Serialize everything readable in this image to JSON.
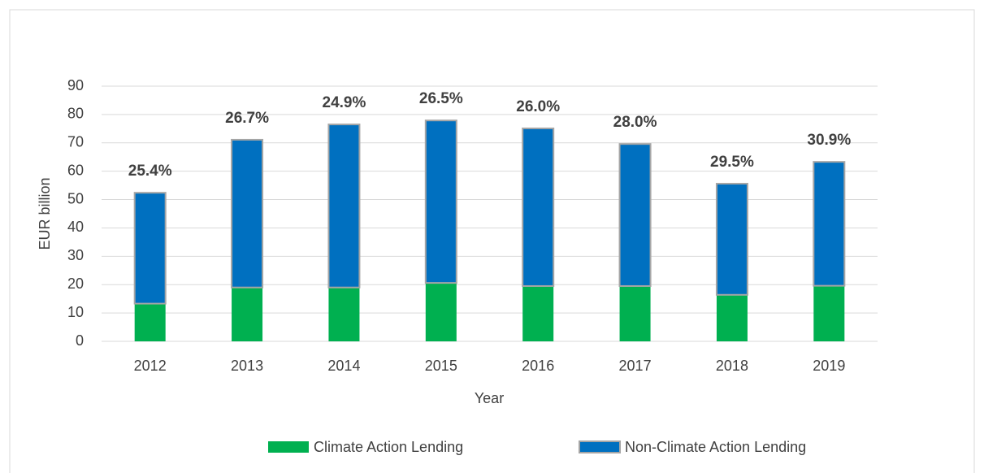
{
  "chart_data": {
    "type": "stacked_bar",
    "x_label": "Year",
    "y_label": "EUR billion",
    "categories": [
      "2012",
      "2013",
      "2014",
      "2015",
      "2016",
      "2017",
      "2018",
      "2019"
    ],
    "series": [
      {
        "name": "Climate Action Lending",
        "color": "#00b050",
        "values": [
          13.3,
          19.0,
          19.0,
          20.6,
          19.5,
          19.5,
          16.4,
          19.6
        ]
      },
      {
        "name": "Non-Climate Action Lending",
        "color": "#0070c0",
        "values": [
          39.1,
          52.1,
          57.5,
          57.3,
          55.6,
          50.1,
          39.2,
          43.7
        ]
      }
    ],
    "share_labels": [
      "25.4%",
      "26.7%",
      "24.9%",
      "26.5%",
      "26.0%",
      "28.0%",
      "29.5%",
      "30.9%"
    ],
    "ylim": [
      0,
      90
    ],
    "yticks": [
      0,
      10,
      20,
      30,
      40,
      50,
      60,
      70,
      80,
      90
    ],
    "grid": true,
    "legend": "bottom"
  }
}
